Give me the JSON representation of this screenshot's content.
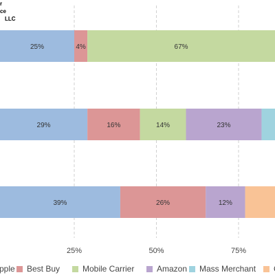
{
  "header": {
    "line1": "r",
    "line2": "ce",
    "line3": "LLC"
  },
  "colors": {
    "Apple": "#9dbbdf",
    "Best Buy": "#dc9696",
    "Mobile Carrier": "#c4d9a0",
    "Amazon": "#b9a5cf",
    "Mass Merchant": "#9fd3df",
    "Other": "#f9c396"
  },
  "chart_data": {
    "type": "bar",
    "orientation": "horizontal",
    "stacked": true,
    "percent_stacked": true,
    "xlim": [
      0,
      100
    ],
    "x_ticks": [
      25,
      50,
      75
    ],
    "x_tick_labels": [
      "25%",
      "50%",
      "75%"
    ],
    "grid": true,
    "legend_position": "bottom",
    "legend": [
      "Apple",
      "Best Buy",
      "Mobile Carrier",
      "Amazon",
      "Mass Merchant",
      "O"
    ],
    "rows": [
      {
        "segments": [
          {
            "series": "Apple",
            "value": 25,
            "label": "25%"
          },
          {
            "series": "Best Buy",
            "value": 4,
            "label": "4%"
          },
          {
            "series": "Mobile Carrier",
            "value": 67,
            "label": "67%"
          }
        ]
      },
      {
        "segments": [
          {
            "series": "Apple",
            "value": 29,
            "label": "29%"
          },
          {
            "series": "Best Buy",
            "value": 16,
            "label": "16%"
          },
          {
            "series": "Mobile Carrier",
            "value": 14,
            "label": "14%"
          },
          {
            "series": "Amazon",
            "value": 23,
            "label": "23%"
          },
          {
            "series": "Mass Merchant",
            "value": 5,
            "label": ""
          }
        ]
      },
      {
        "segments": [
          {
            "series": "Apple",
            "value": 39,
            "label": "39%"
          },
          {
            "series": "Best Buy",
            "value": 26,
            "label": "26%"
          },
          {
            "series": "Amazon",
            "value": 12,
            "label": "12%"
          },
          {
            "series": "Other",
            "value": 11,
            "label": ""
          }
        ]
      }
    ]
  }
}
